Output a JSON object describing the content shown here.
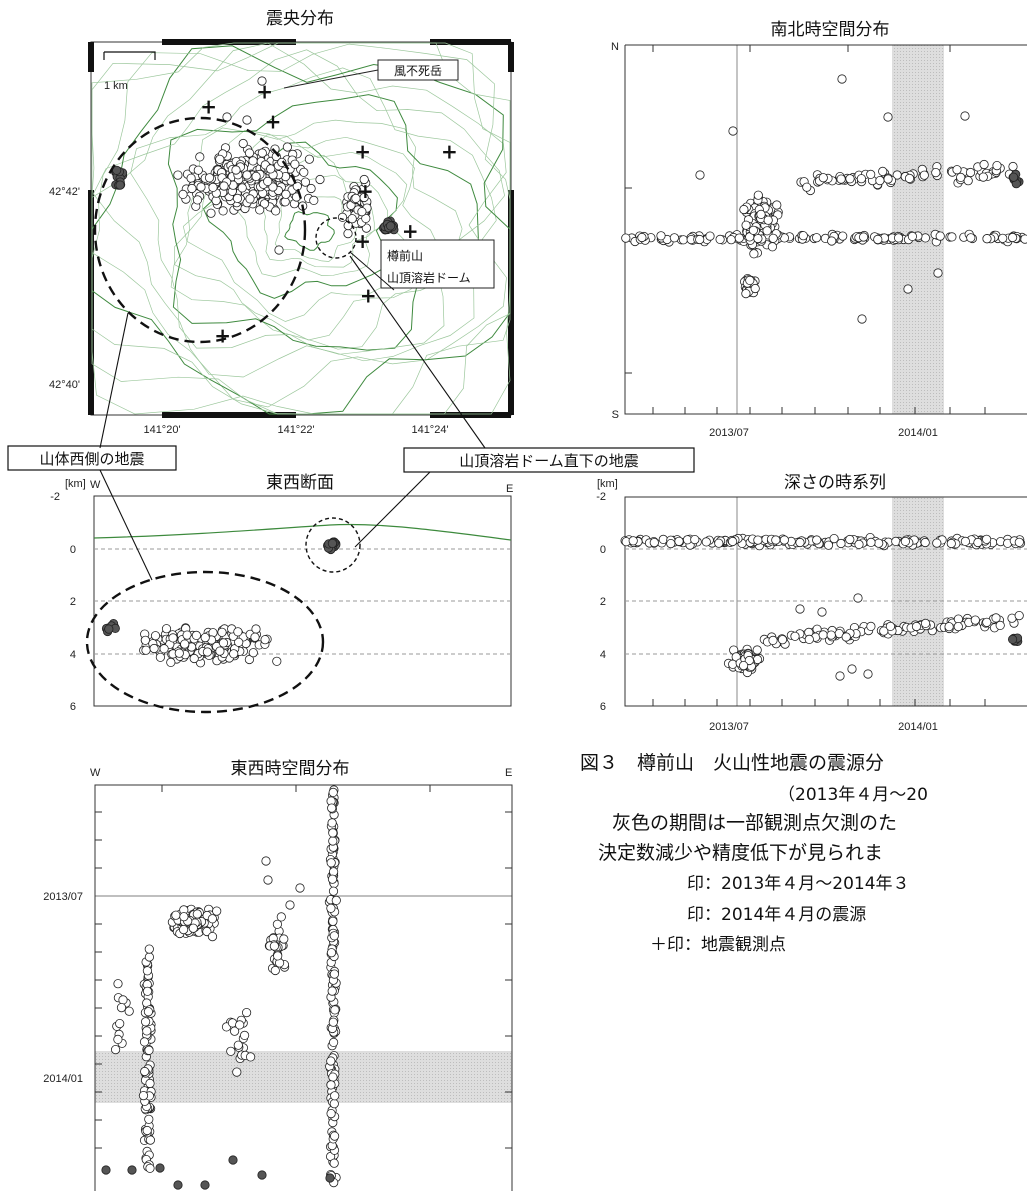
{
  "figure_caption": {
    "line1": "図３　樽前山　火山性地震の震源分",
    "line2": "（2013年４月～20",
    "line3": "灰色の期間は一部観測点欠測のた",
    "line4": "決定数減少や精度低下が見られま",
    "line5": "印：2013年４月～2014年３",
    "line6": "印：2014年４月の震源",
    "line7": "＋印：地震観測点"
  },
  "callouts": {
    "west_label": "山体西側の地震",
    "dome_label": "山頂溶岩ドーム直下の地震",
    "peak_label": "風不死岳",
    "dome_name_1": "樽前山",
    "dome_name_2": "山頂溶岩ドーム",
    "scale_label": "1 km"
  },
  "chart_data": [
    {
      "type": "scatter",
      "title": "震央分布",
      "y_tick_labels": [
        "42°42'",
        "42°40'"
      ],
      "x_tick_labels": [
        "141°20'",
        "141°22'",
        "141°24'"
      ],
      "xlim": [
        141.28,
        141.43
      ],
      "ylim": [
        42.655,
        42.73
      ],
      "series": [
        {
          "color": "#ffffff",
          "clusters": [
            {
              "x": 141.336,
              "y": 42.702,
              "rx": 0.036,
              "ry": 0.01
            },
            {
              "x": 141.375,
              "y": 42.697,
              "rx": 0.008,
              "ry": 0.008
            }
          ]
        },
        {
          "color": "#555555",
          "clusters": [
            {
              "x": 141.386,
              "y": 42.693,
              "rx": 0.004,
              "ry": 0.002
            },
            {
              "x": 141.29,
              "y": 42.703,
              "rx": 0.003,
              "ry": 0.003
            }
          ]
        }
      ],
      "stations": [
        [
          141.322,
          42.717
        ],
        [
          141.345,
          42.714
        ],
        [
          141.377,
          42.708
        ],
        [
          141.408,
          42.708
        ],
        [
          141.378,
          42.7
        ],
        [
          141.394,
          42.692
        ],
        [
          141.377,
          42.69
        ],
        [
          141.379,
          42.679
        ],
        [
          141.327,
          42.671
        ],
        [
          141.342,
          42.72
        ]
      ]
    },
    {
      "type": "scatter",
      "title": "南北時空間分布",
      "axis_end_labels": [
        "N",
        "S"
      ],
      "x_tick_labels": [
        "2013/07",
        "2014/01"
      ],
      "grey_band": [
        "2013/12/15",
        "2014/01/20"
      ],
      "v_line": "2013/07/10"
    },
    {
      "type": "scatter",
      "title": "東西断面",
      "axis_end_labels": [
        "W",
        "E"
      ],
      "unit": "[km]",
      "y_tick_labels": [
        "-2",
        "0",
        "2",
        "4",
        "6"
      ],
      "ylim": [
        -2,
        6
      ]
    },
    {
      "type": "scatter",
      "title": "深さの時系列",
      "unit": "[km]",
      "y_tick_labels": [
        "-2",
        "0",
        "2",
        "4",
        "6"
      ],
      "x_tick_labels": [
        "2013/07",
        "2014/01"
      ],
      "ylim": [
        -2,
        6
      ]
    },
    {
      "type": "scatter",
      "title": "東西時空間分布",
      "axis_end_labels": [
        "W",
        "E"
      ],
      "y_tick_labels": [
        "2013/07",
        "2014/01"
      ]
    }
  ]
}
